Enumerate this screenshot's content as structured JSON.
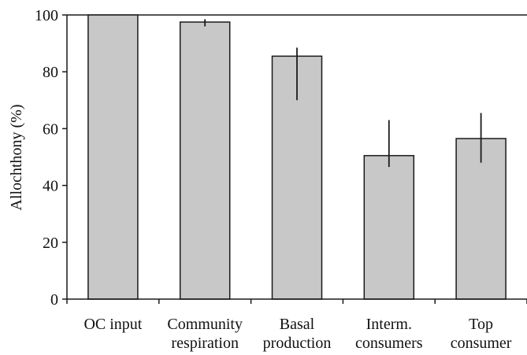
{
  "chart_data": {
    "type": "bar",
    "title": "",
    "xlabel": "",
    "ylabel": "Allochthony (%)",
    "ylim": [
      0,
      100
    ],
    "yticks": [
      0,
      20,
      40,
      60,
      80,
      100
    ],
    "grid": false,
    "legend": "none",
    "categories": [
      [
        "OC input"
      ],
      [
        "Community",
        "respiration"
      ],
      [
        "Basal",
        "production"
      ],
      [
        "Interm.",
        "consumers"
      ],
      [
        "Top",
        "consumer"
      ]
    ],
    "series": [
      {
        "values": [
          100,
          97.5,
          85.5,
          50.5,
          56.5
        ],
        "error_low": [
          100,
          96,
          70,
          46.5,
          48
        ],
        "error_high": [
          100,
          98.5,
          88.5,
          63,
          65.5
        ]
      }
    ],
    "colors": {
      "bar_fill": "#c8c8c8",
      "bar_stroke": "#1a1a1a",
      "axis": "#1a1a1a"
    }
  }
}
